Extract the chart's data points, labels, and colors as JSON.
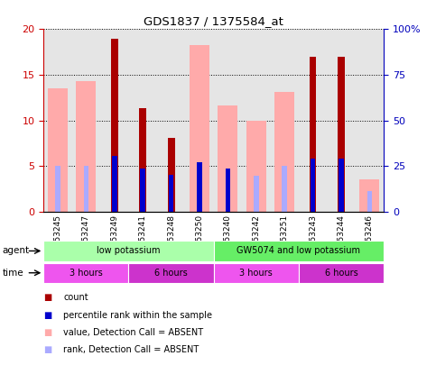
{
  "title": "GDS1837 / 1375584_at",
  "samples": [
    "GSM53245",
    "GSM53247",
    "GSM53249",
    "GSM53241",
    "GSM53248",
    "GSM53250",
    "GSM53240",
    "GSM53242",
    "GSM53251",
    "GSM53243",
    "GSM53244",
    "GSM53246"
  ],
  "count_values": [
    null,
    null,
    19.0,
    11.3,
    8.1,
    null,
    null,
    null,
    null,
    17.0,
    17.0,
    null
  ],
  "count_color": "#aa0000",
  "pink_values": [
    13.5,
    14.3,
    null,
    null,
    null,
    18.3,
    11.6,
    null,
    13.1,
    null,
    null,
    3.5
  ],
  "pink_color": "#ffaaaa",
  "blue_rank_values": [
    null,
    null,
    6.1,
    4.7,
    4.0,
    5.4,
    4.7,
    null,
    null,
    5.8,
    5.8,
    null
  ],
  "blue_rank_color": "#0000cc",
  "light_blue_values": [
    5.0,
    5.0,
    null,
    null,
    null,
    null,
    null,
    3.9,
    5.0,
    null,
    null,
    2.3
  ],
  "light_blue_color": "#aaaaff",
  "pink_absent_values": [
    null,
    null,
    null,
    null,
    null,
    null,
    null,
    10.0,
    null,
    null,
    null,
    null
  ],
  "ylim": [
    0,
    20
  ],
  "y2lim": [
    0,
    100
  ],
  "yticks": [
    0,
    5,
    10,
    15,
    20
  ],
  "ytick_labels_left": [
    "0",
    "5",
    "10",
    "15",
    "20"
  ],
  "y2ticks": [
    0,
    25,
    50,
    75,
    100
  ],
  "y2tick_labels": [
    "0",
    "25",
    "50",
    "75",
    "100%"
  ],
  "left_axis_color": "#cc0000",
  "right_axis_color": "#0000bb",
  "agent_groups": [
    {
      "label": "low potassium",
      "start": 0,
      "end": 6,
      "color": "#aaffaa"
    },
    {
      "label": "GW5074 and low potassium",
      "start": 6,
      "end": 12,
      "color": "#66ee66"
    }
  ],
  "time_groups": [
    {
      "label": "3 hours",
      "start": 0,
      "end": 3,
      "color": "#ee55ee"
    },
    {
      "label": "6 hours",
      "start": 3,
      "end": 6,
      "color": "#cc33cc"
    },
    {
      "label": "3 hours",
      "start": 6,
      "end": 9,
      "color": "#ee55ee"
    },
    {
      "label": "6 hours",
      "start": 9,
      "end": 12,
      "color": "#cc33cc"
    }
  ],
  "legend_items": [
    {
      "color": "#aa0000",
      "label": "count"
    },
    {
      "color": "#0000cc",
      "label": "percentile rank within the sample"
    },
    {
      "color": "#ffaaaa",
      "label": "value, Detection Call = ABSENT"
    },
    {
      "color": "#aaaaff",
      "label": "rank, Detection Call = ABSENT"
    }
  ],
  "col_bg_color": "#cccccc",
  "bg_color": "#ffffff"
}
